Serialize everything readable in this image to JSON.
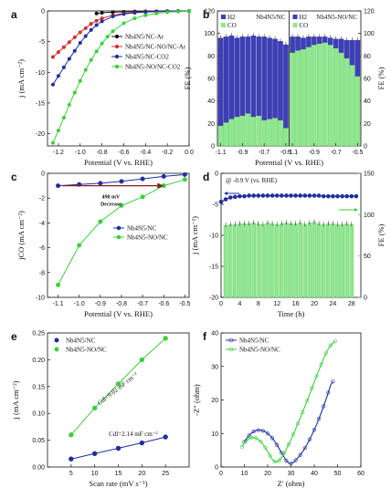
{
  "chart_data": [
    {
      "panel": "a",
      "type": "line",
      "xlabel": "Potential (V vs. RHE)",
      "ylabel": "j (mA cm⁻²)",
      "xlim": [
        -1.3,
        0.0
      ],
      "ylim": [
        -22,
        0
      ],
      "x_ticks": [
        -1.2,
        -1.0,
        -0.8,
        -0.6,
        -0.4,
        -0.2,
        0.0
      ],
      "x_tick_labels": [
        "-1.2",
        "-1.0",
        "-0.8",
        "-0.6",
        "-0.4",
        "-0.2",
        "0.0"
      ],
      "y_ticks": [
        0,
        -5,
        -10,
        -15,
        -20
      ],
      "y_tick_labels": [
        "0",
        "-5",
        "-10",
        "-15",
        "-20"
      ],
      "legend_position": "top-left",
      "series": [
        {
          "name": "Nb4N5/NC-Ar",
          "color": "#111111",
          "x": [
            -0.85,
            -0.8,
            -0.7,
            -0.6,
            -0.5,
            -0.4,
            -0.3,
            -0.2,
            -0.1,
            0.0
          ],
          "y": [
            -0.4,
            -0.3,
            -0.2,
            -0.15,
            -0.1,
            -0.07,
            -0.05,
            -0.03,
            -0.02,
            -0.01
          ]
        },
        {
          "name": "Nb4N5/NC-NO/NC-Ar",
          "color": "#d0312d",
          "x": [
            -1.25,
            -1.2,
            -1.15,
            -1.1,
            -1.05,
            -1.0,
            -0.95,
            -0.9,
            -0.85,
            -0.8,
            -0.7,
            -0.6,
            -0.5,
            -0.4,
            -0.3,
            -0.2,
            -0.1,
            0.0
          ],
          "y": [
            -7.5,
            -6.7,
            -5.9,
            -5.1,
            -4.3,
            -3.5,
            -2.8,
            -2.1,
            -1.6,
            -1.2,
            -0.7,
            -0.4,
            -0.25,
            -0.15,
            -0.1,
            -0.06,
            -0.03,
            -0.01
          ]
        },
        {
          "name": "Nb4N5/NC-CO2",
          "color": "#1f2f9e",
          "x": [
            -1.25,
            -1.2,
            -1.15,
            -1.1,
            -1.05,
            -1.0,
            -0.95,
            -0.9,
            -0.85,
            -0.8,
            -0.7,
            -0.6,
            -0.5,
            -0.4,
            -0.3,
            -0.2,
            -0.1,
            0.0
          ],
          "y": [
            -12.0,
            -10.6,
            -9.2,
            -7.8,
            -6.5,
            -5.2,
            -4.1,
            -3.1,
            -2.3,
            -1.7,
            -0.9,
            -0.5,
            -0.3,
            -0.18,
            -0.1,
            -0.06,
            -0.03,
            -0.01
          ]
        },
        {
          "name": "Nb4N5-NO/NC-CO2",
          "color": "#3ccf3c",
          "x": [
            -1.25,
            -1.2,
            -1.15,
            -1.1,
            -1.05,
            -1.0,
            -0.95,
            -0.9,
            -0.85,
            -0.8,
            -0.75,
            -0.7,
            -0.6,
            -0.5,
            -0.4,
            -0.3,
            -0.2,
            -0.1,
            0.0
          ],
          "y": [
            -21.5,
            -19.5,
            -17.4,
            -15.3,
            -13.3,
            -11.4,
            -9.6,
            -8.0,
            -6.6,
            -5.3,
            -4.2,
            -3.3,
            -2.0,
            -1.2,
            -0.7,
            -0.4,
            -0.2,
            -0.1,
            -0.03
          ]
        }
      ]
    },
    {
      "panel": "b",
      "type": "bar",
      "xlabel": "Potential (V vs. RHE)",
      "ylabel_left": "FE (%)",
      "ylabel_right": "FE (%)",
      "ylim": [
        0,
        120
      ],
      "y_ticks": [
        0,
        20,
        40,
        60,
        80,
        100,
        120
      ],
      "x_tick_labels": [
        "-1.1",
        "-0.9",
        "-0.7",
        "-0.5"
      ],
      "subpanels": [
        {
          "label": "Nb4N5/NC",
          "x": [
            -1.1,
            -1.05,
            -1.0,
            -0.95,
            -0.9,
            -0.85,
            -0.8,
            -0.75,
            -0.7,
            -0.65,
            -0.6,
            -0.55,
            -0.5
          ],
          "series": [
            {
              "name": "H2",
              "color": "#3d3fb8",
              "values": [
                78,
                76,
                74,
                70,
                70,
                68,
                72,
                70,
                74,
                72,
                70,
                70,
                74
              ]
            },
            {
              "name": "CO",
              "color": "#8ee88e",
              "values": [
                18,
                21,
                24,
                26,
                27,
                29,
                26,
                27,
                23,
                24,
                25,
                23,
                16
              ]
            }
          ]
        },
        {
          "label": "Nb4N5-NO/NC",
          "x": [
            -1.1,
            -1.05,
            -1.0,
            -0.95,
            -0.9,
            -0.85,
            -0.8,
            -0.75,
            -0.7,
            -0.65,
            -0.6,
            -0.55,
            -0.5
          ],
          "series": [
            {
              "name": "H2",
              "color": "#3d3fb8",
              "values": [
                14,
                12,
                10,
                9,
                7,
                6,
                5,
                6,
                8,
                12,
                16,
                22,
                32
              ]
            },
            {
              "name": "CO",
              "color": "#8ee88e",
              "values": [
                83,
                85,
                86,
                88,
                90,
                91,
                92,
                90,
                87,
                83,
                78,
                72,
                62
              ]
            }
          ]
        }
      ]
    },
    {
      "panel": "c",
      "type": "line",
      "xlabel": "Potential (V vs. RHE)",
      "ylabel": "jCO (mA cm⁻²)",
      "xlim": [
        -1.15,
        -0.48
      ],
      "ylim": [
        -10,
        0
      ],
      "x_ticks": [
        -1.1,
        -1.0,
        -0.9,
        -0.8,
        -0.7,
        -0.6,
        -0.5
      ],
      "x_tick_labels": [
        "-1.1",
        "-1.0",
        "-0.9",
        "-0.8",
        "-0.7",
        "-0.6",
        "-0.5"
      ],
      "y_ticks": [
        0,
        -2,
        -4,
        -6,
        -8,
        -10
      ],
      "y_tick_labels": [
        "0",
        "-2",
        "-4",
        "-6",
        "-8",
        "-10"
      ],
      "legend_position": "middle-right",
      "annotation": {
        "text_top": "490 mV",
        "text_bottom": "Decrease"
      },
      "series": [
        {
          "name": "Nb4N5/NC",
          "color": "#1f2f9e",
          "x": [
            -1.1,
            -1.0,
            -0.9,
            -0.8,
            -0.7,
            -0.6,
            -0.5
          ],
          "y": [
            -1.0,
            -0.9,
            -0.8,
            -0.65,
            -0.45,
            -0.25,
            -0.1
          ]
        },
        {
          "name": "Nb4N5-NO/NC",
          "color": "#3ccf3c",
          "x": [
            -1.1,
            -1.0,
            -0.9,
            -0.8,
            -0.7,
            -0.6,
            -0.5
          ],
          "y": [
            -9.0,
            -5.8,
            -3.9,
            -2.6,
            -1.9,
            -1.0,
            -0.5
          ]
        }
      ]
    },
    {
      "panel": "d",
      "type": "line",
      "xlabel": "Time (h)",
      "ylabel_left": "j (mA cm⁻²)",
      "ylabel_right": "FE (%)",
      "annotation": "@ -0.9 V (vs. RHE)",
      "xlim": [
        0,
        30
      ],
      "ylim_left": [
        -20,
        0
      ],
      "ylim_right": [
        0,
        150
      ],
      "x_ticks": [
        0,
        4,
        8,
        12,
        16,
        20,
        24,
        28
      ],
      "x_tick_labels": [
        "0",
        "4",
        "8",
        "12",
        "16",
        "20",
        "24",
        "28"
      ],
      "y_ticks_left": [
        0,
        -5,
        -10,
        -15,
        -20
      ],
      "y_tick_labels_left": [
        "0",
        "-5",
        "-10",
        "-15",
        "-20"
      ],
      "y_ticks_right": [
        0,
        50,
        100,
        150
      ],
      "y_tick_labels_right": [
        "0",
        "50",
        "100",
        "150"
      ],
      "current": {
        "color": "#1f2f9e",
        "x_start": 0,
        "x_end": 29,
        "values": [
          -4.6,
          -4.2,
          -3.9,
          -3.8,
          -3.7,
          -3.7,
          -3.6,
          -3.6,
          -3.6,
          -3.6,
          -3.6,
          -3.6,
          -3.6,
          -3.6,
          -3.6,
          -3.6,
          -3.6,
          -3.6,
          -3.6,
          -3.6,
          -3.6,
          -3.6,
          -3.7,
          -3.7,
          -3.7,
          -3.7,
          -3.7,
          -3.7,
          -3.7,
          -3.7
        ]
      },
      "fe": {
        "color": "#8ee88e",
        "bar_x": [
          1,
          2,
          3,
          4,
          5,
          6,
          7,
          8,
          9,
          10,
          11,
          12,
          13,
          14,
          15,
          16,
          17,
          18,
          19,
          20,
          21,
          22,
          23,
          24,
          25,
          26,
          27,
          28
        ],
        "values": [
          87,
          88,
          88,
          89,
          89,
          89,
          90,
          89,
          88,
          90,
          89,
          88,
          89,
          90,
          89,
          89,
          90,
          88,
          90,
          91,
          89,
          88,
          89,
          89,
          88,
          88,
          89,
          88
        ]
      }
    },
    {
      "panel": "e",
      "type": "scatter",
      "xlabel": "Scan rate (mV s⁻¹)",
      "ylabel": "j (mA cm⁻²)",
      "xlim": [
        0,
        30
      ],
      "ylim": [
        0,
        0.25
      ],
      "x_ticks": [
        5,
        10,
        15,
        20,
        25
      ],
      "x_tick_labels": [
        "5",
        "10",
        "15",
        "20",
        "25"
      ],
      "y_ticks": [
        0.0,
        0.05,
        0.1,
        0.15,
        0.2,
        0.25
      ],
      "y_tick_labels": [
        "0.00",
        "0.05",
        "0.10",
        "0.15",
        "0.20",
        "0.25"
      ],
      "legend_position": "top-left",
      "annotations": [
        "Cdl=9.02 mF cm⁻²",
        "Cdl=2.14 mF cm⁻²"
      ],
      "series": [
        {
          "name": "Nb4N5/NC",
          "color": "#1f2f9e",
          "x": [
            5,
            10,
            15,
            20,
            25
          ],
          "y": [
            0.015,
            0.025,
            0.035,
            0.045,
            0.056
          ]
        },
        {
          "name": "Nb4N5-NO/NC",
          "color": "#3ccf3c",
          "x": [
            5,
            10,
            15,
            20,
            25
          ],
          "y": [
            0.06,
            0.11,
            0.155,
            0.2,
            0.24
          ]
        }
      ]
    },
    {
      "panel": "f",
      "type": "scatter",
      "xlabel": "Z′ (ohm)",
      "ylabel": "-Z″ (ohm)",
      "xlim": [
        0,
        60
      ],
      "ylim": [
        0,
        40
      ],
      "x_ticks": [
        0,
        10,
        20,
        30,
        40,
        50,
        60
      ],
      "x_tick_labels": [
        "0",
        "10",
        "20",
        "30",
        "40",
        "50",
        "60"
      ],
      "y_ticks": [
        0,
        10,
        20,
        30,
        40
      ],
      "y_tick_labels": [
        "0",
        "10",
        "20",
        "30",
        "40"
      ],
      "legend_position": "top-left",
      "series": [
        {
          "name": "Nb4N5/NC",
          "color": "#1f2f9e",
          "x": [
            10,
            11,
            12,
            13,
            14,
            15,
            16,
            17,
            18,
            19,
            20,
            21,
            22,
            23,
            24,
            25,
            26,
            27,
            28,
            29,
            30,
            31,
            32,
            33,
            34,
            35,
            36,
            37,
            38,
            39,
            40,
            41,
            42,
            43,
            44,
            45,
            46,
            47,
            48
          ],
          "y": [
            7.5,
            8.6,
            9.4,
            10.1,
            10.6,
            10.9,
            11.0,
            11.0,
            10.8,
            10.5,
            10.0,
            9.4,
            8.6,
            7.7,
            6.6,
            5.4,
            4.2,
            3.0,
            1.9,
            1.2,
            1.0,
            1.4,
            2.0,
            2.8,
            3.6,
            4.6,
            5.7,
            6.9,
            8.2,
            9.6,
            11.1,
            12.7,
            14.4,
            16.2,
            18.1,
            20.1,
            22.2,
            24.4,
            25.5
          ]
        },
        {
          "name": "Nb4N5-NO/NC",
          "color": "#3ccf3c",
          "x": [
            9,
            10,
            11,
            12,
            13,
            14,
            15,
            16,
            17,
            18,
            19,
            20,
            21,
            22,
            23,
            24,
            25,
            26,
            27,
            28,
            29,
            30,
            31,
            32,
            33,
            34,
            35,
            36,
            37,
            38,
            39,
            40,
            41,
            42,
            43,
            44,
            45,
            46,
            47,
            48,
            49
          ],
          "y": [
            6.0,
            7.2,
            8.0,
            8.5,
            8.8,
            8.8,
            8.6,
            8.2,
            7.6,
            6.8,
            5.8,
            4.6,
            3.4,
            2.3,
            1.6,
            1.5,
            2.0,
            2.9,
            4.0,
            5.3,
            6.7,
            8.2,
            9.8,
            11.4,
            13.0,
            14.7,
            16.4,
            18.1,
            19.9,
            21.7,
            23.5,
            25.3,
            27.1,
            28.9,
            30.6,
            32.3,
            33.9,
            35.2,
            36.3,
            37.0,
            37.5
          ]
        }
      ]
    }
  ]
}
